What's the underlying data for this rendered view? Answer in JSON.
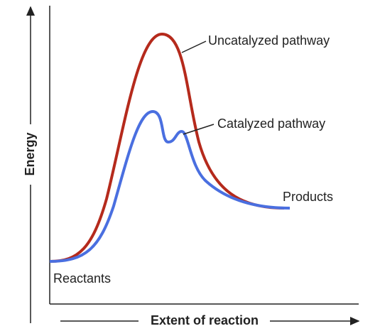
{
  "axes": {
    "y_label": "Energy",
    "x_label": "Extent of reaction"
  },
  "curves": [
    {
      "label": "Uncatalyzed pathway"
    },
    {
      "label": "Catalyzed pathway"
    }
  ],
  "states": {
    "start": "Reactants",
    "end": "Products"
  }
}
